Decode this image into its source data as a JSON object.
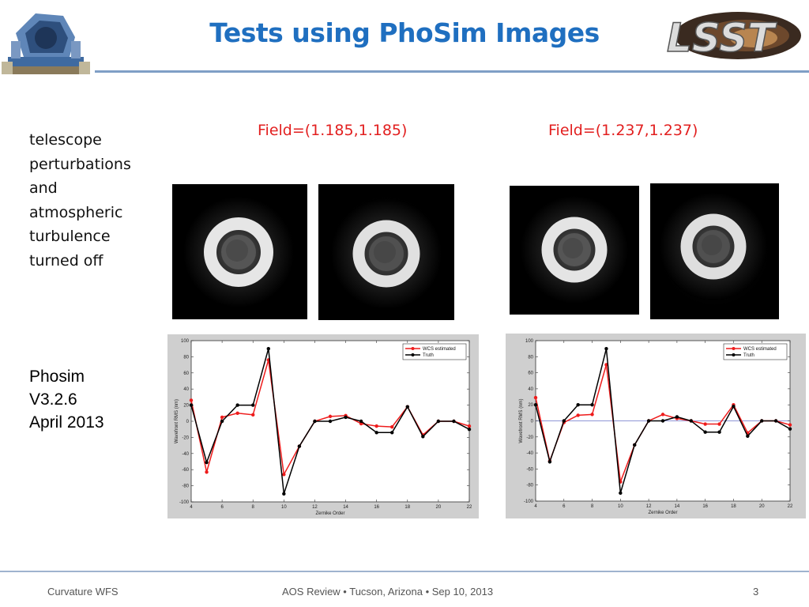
{
  "slide": {
    "title": "Tests using PhoSim Images",
    "description_lines": [
      "telescope",
      "perturbations",
      "and",
      "atmospheric",
      "turbulence",
      "turned off"
    ],
    "version_lines": [
      "Phosim",
      "V3.2.6",
      "April 2013"
    ],
    "field_labels": [
      "Field=(1.185,1.185)",
      "Field=(1.237,1.237)"
    ],
    "footer": {
      "left": "Curvature WFS",
      "center": "AOS Review • Tucson, Arizona • Sep 10, 2013",
      "page": "3"
    },
    "logo_text": "LSST"
  },
  "chart_data": [
    {
      "type": "line",
      "xlabel": "Zernike Order",
      "ylabel": "Wavefront RMS (nm)",
      "xlim": [
        4,
        22
      ],
      "ylim": [
        -100,
        100
      ],
      "xticks": [
        4,
        6,
        8,
        10,
        12,
        14,
        16,
        18,
        20,
        22
      ],
      "yticks": [
        100,
        80,
        60,
        40,
        20,
        0,
        -20,
        -40,
        -60,
        -80,
        -100
      ],
      "grid": false,
      "legend": "top-right",
      "zero_line": false,
      "x": [
        4,
        5,
        6,
        7,
        8,
        9,
        10,
        11,
        12,
        13,
        14,
        15,
        16,
        17,
        18,
        19,
        20,
        21,
        22
      ],
      "series": [
        {
          "name": "WCS estimated",
          "color": "#ee1c1c",
          "values": [
            26,
            -63,
            5,
            10,
            8,
            76,
            -66,
            -31,
            0,
            6,
            7,
            -3,
            -6,
            -7,
            18,
            -17,
            0,
            0,
            -6
          ]
        },
        {
          "name": "Truth",
          "color": "#000000",
          "values": [
            20,
            -51,
            0,
            20,
            20,
            90,
            -90,
            -31,
            0,
            0,
            5,
            0,
            -14,
            -14,
            18,
            -19,
            0,
            0,
            -10
          ]
        }
      ]
    },
    {
      "type": "line",
      "xlabel": "Zernike Order",
      "ylabel": "Wavefront RMS (nm)",
      "xlim": [
        4,
        22
      ],
      "ylim": [
        -100,
        100
      ],
      "xticks": [
        4,
        6,
        8,
        10,
        12,
        14,
        16,
        18,
        20,
        22
      ],
      "yticks": [
        100,
        80,
        60,
        40,
        20,
        0,
        -20,
        -40,
        -60,
        -80,
        -100
      ],
      "grid": false,
      "legend": "top-right",
      "zero_line": true,
      "x": [
        4,
        5,
        6,
        7,
        8,
        9,
        10,
        11,
        12,
        13,
        14,
        15,
        16,
        17,
        18,
        19,
        20,
        21,
        22
      ],
      "series": [
        {
          "name": "WCS estimated",
          "color": "#ee1c1c",
          "values": [
            29,
            -50,
            -2,
            7,
            8,
            70,
            -76,
            -30,
            0,
            8,
            3,
            0,
            -4,
            -4,
            20,
            -15,
            0,
            0,
            -5
          ]
        },
        {
          "name": "Truth",
          "color": "#000000",
          "values": [
            20,
            -51,
            0,
            20,
            20,
            90,
            -90,
            -30,
            0,
            0,
            5,
            0,
            -14,
            -14,
            18,
            -19,
            0,
            0,
            -10
          ]
        }
      ]
    }
  ]
}
